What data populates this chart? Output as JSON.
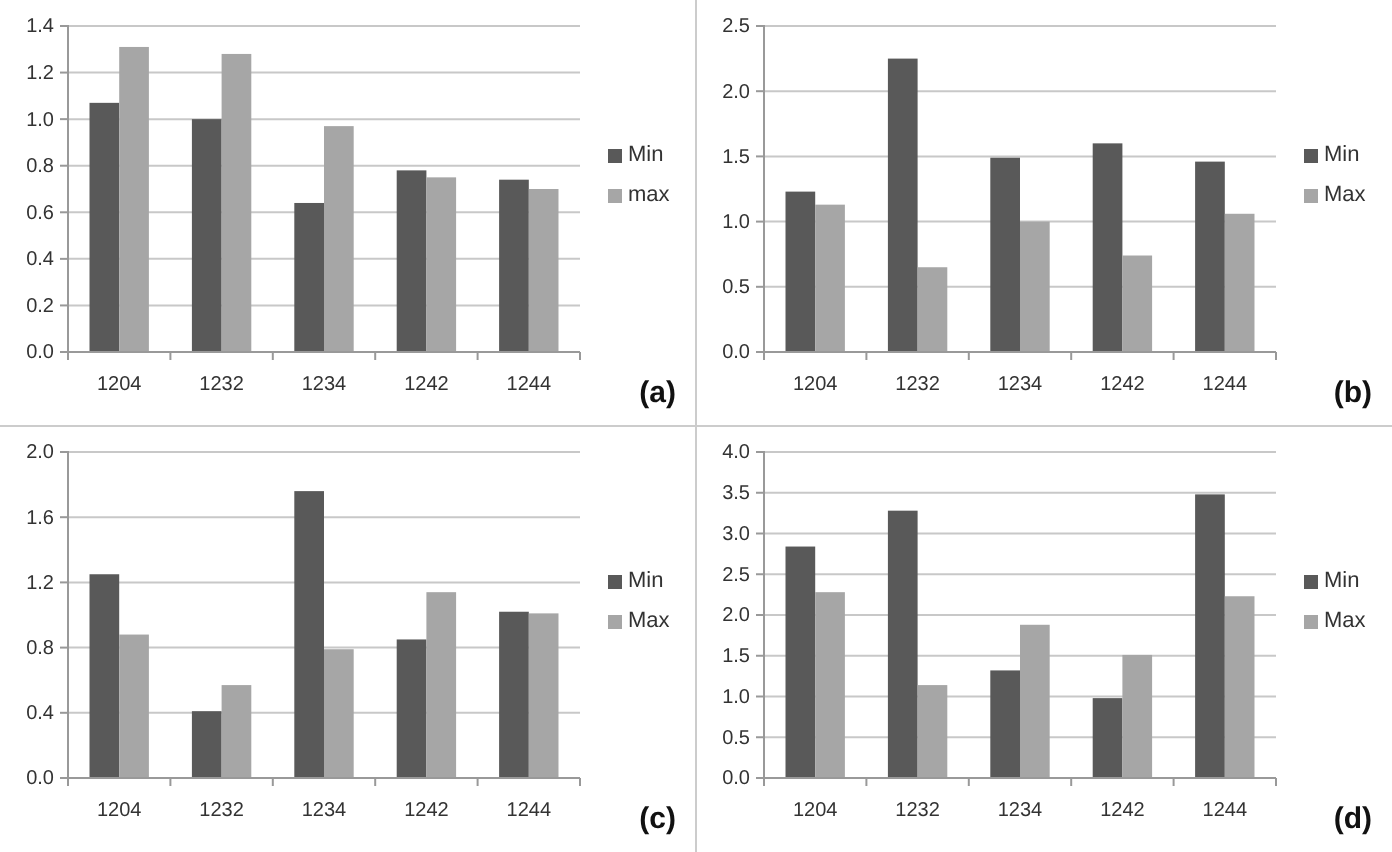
{
  "chart_data": [
    {
      "type": "bar",
      "categories": [
        "1204",
        "1232",
        "1234",
        "1242",
        "1244"
      ],
      "series": [
        {
          "name": "Min",
          "color": "#595959",
          "values": [
            1.07,
            1.0,
            0.64,
            0.78,
            0.74
          ]
        },
        {
          "name": "max",
          "color": "#a6a6a6",
          "values": [
            1.31,
            1.28,
            0.97,
            0.75,
            0.7
          ]
        }
      ],
      "ylim": [
        0,
        1.4
      ],
      "yticks": [
        {
          "value": 0,
          "label": "0.0"
        },
        0.2,
        0.4,
        0.6,
        0.8,
        {
          "value": 1,
          "label": "1.0"
        },
        1.2,
        1.4
      ],
      "grid": "y",
      "legend": "right",
      "annotations": [
        "(a)"
      ]
    },
    {
      "type": "bar",
      "categories": [
        "1204",
        "1232",
        "1234",
        "1242",
        "1244"
      ],
      "series": [
        {
          "name": "Min",
          "color": "#595959",
          "values": [
            1.23,
            2.25,
            1.49,
            1.6,
            1.46
          ]
        },
        {
          "name": "Max",
          "color": "#a6a6a6",
          "values": [
            1.13,
            0.65,
            1.0,
            0.74,
            1.06
          ]
        }
      ],
      "ylim": [
        0,
        2.5
      ],
      "yticks": [
        {
          "value": 0,
          "label": "0.0"
        },
        0.5,
        {
          "value": 1,
          "label": "1.0"
        },
        1.5,
        {
          "value": 2,
          "label": "2.0"
        },
        2.5
      ],
      "grid": "y",
      "legend": "right",
      "annotations": [
        "(b)"
      ]
    },
    {
      "type": "bar",
      "categories": [
        "1204",
        "1232",
        "1234",
        "1242",
        "1244"
      ],
      "series": [
        {
          "name": "Min",
          "color": "#595959",
          "values": [
            1.25,
            0.41,
            1.76,
            0.85,
            1.02
          ]
        },
        {
          "name": "Max",
          "color": "#a6a6a6",
          "values": [
            0.88,
            0.57,
            0.79,
            1.14,
            1.01
          ]
        }
      ],
      "ylim": [
        0,
        2.0
      ],
      "yticks": [
        {
          "value": 0,
          "label": "0.0"
        },
        0.4,
        0.8,
        1.2,
        1.6,
        {
          "value": 2,
          "label": "2.0"
        }
      ],
      "grid": "y",
      "legend": "right",
      "annotations": [
        "(c)"
      ]
    },
    {
      "type": "bar",
      "categories": [
        "1204",
        "1232",
        "1234",
        "1242",
        "1244"
      ],
      "series": [
        {
          "name": "Min",
          "color": "#595959",
          "values": [
            2.84,
            3.28,
            1.32,
            0.98,
            3.48
          ]
        },
        {
          "name": "Max",
          "color": "#a6a6a6",
          "values": [
            2.28,
            1.14,
            1.88,
            1.51,
            2.23
          ]
        }
      ],
      "ylim": [
        0,
        4.0
      ],
      "yticks": [
        {
          "value": 0,
          "label": "0.0"
        },
        0.5,
        {
          "value": 1,
          "label": "1.0"
        },
        1.5,
        {
          "value": 2,
          "label": "2.0"
        },
        2.5,
        {
          "value": 3,
          "label": "3.0"
        },
        3.5,
        {
          "value": 4,
          "label": "4.0"
        }
      ],
      "grid": "y",
      "legend": "right",
      "annotations": [
        "(d)"
      ]
    }
  ]
}
